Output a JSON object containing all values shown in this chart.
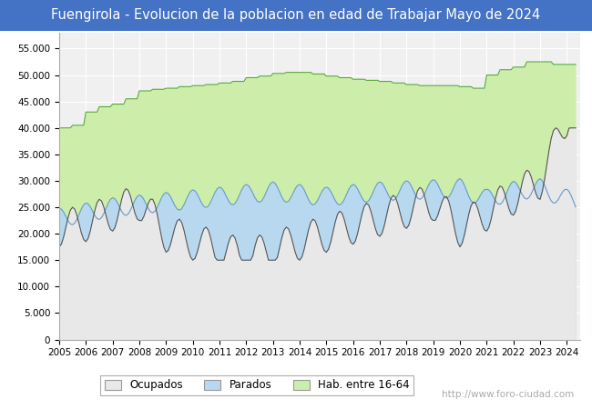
{
  "title": "Fuengirola - Evolucion de la poblacion en edad de Trabajar Mayo de 2024",
  "title_bg_color": "#4472c4",
  "title_text_color": "#ffffff",
  "title_fontsize": 10.5,
  "ylim": [
    0,
    58000
  ],
  "yticks": [
    0,
    5000,
    10000,
    15000,
    20000,
    25000,
    30000,
    35000,
    40000,
    45000,
    50000,
    55000
  ],
  "ytick_labels": [
    "0",
    "5.000",
    "10.000",
    "15.000",
    "20.000",
    "25.000",
    "30.000",
    "35.000",
    "40.000",
    "45.000",
    "50.000",
    "55.000"
  ],
  "watermark": "http://www.foro-ciudad.com",
  "legend_labels": [
    "Ocupados",
    "Parados",
    "Hab. entre 16-64"
  ],
  "ocupados_color": "#e8e8e8",
  "ocupados_line": "#555555",
  "parados_color": "#b8d8f0",
  "parados_line": "#6699cc",
  "hab_color": "#cceeaa",
  "hab_line": "#55aa33",
  "bg_plot_color": "#f0f0f0",
  "grid_color": "#ffffff",
  "watermark_color": "#aaaaaa",
  "watermark_fontsize": 7.5
}
